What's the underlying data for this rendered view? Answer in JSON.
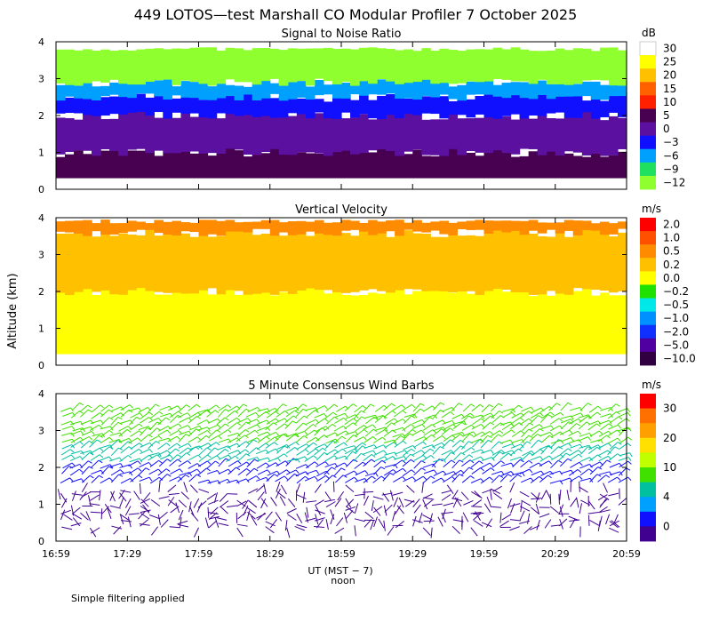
{
  "title": "449 LOTOS—test Marshall CO Modular Profiler  7 October 2025",
  "footnote": "Simple filtering applied",
  "xaxis": {
    "label": "UT  (MST − 7)",
    "sublabel": "noon",
    "ticks": [
      "16:59",
      "17:29",
      "17:59",
      "18:29",
      "18:59",
      "19:29",
      "19:59",
      "20:29",
      "20:59"
    ]
  },
  "yaxis_label": "Altitude (km)",
  "chart_data": [
    {
      "type": "heatmap",
      "title": "Signal to Noise Ratio",
      "unit": "dB",
      "ylim": [
        0,
        4
      ],
      "yticks": [
        "0",
        "1",
        "2",
        "3",
        "4"
      ],
      "colorbar": {
        "labels": [
          "30",
          "25",
          "20",
          "15",
          "10",
          "5",
          "0",
          "−3",
          "−6",
          "−9",
          "−12"
        ],
        "colors": [
          "#ffffff",
          "#ffff00",
          "#ffc000",
          "#ff6000",
          "#ff2000",
          "#480050",
          "#5c10a0",
          "#1010ff",
          "#00a0ff",
          "#20e060",
          "#90ff30"
        ]
      },
      "layers": [
        {
          "alt_range": [
            0.3,
            1.0
          ],
          "color": "#480050"
        },
        {
          "alt_range": [
            1.0,
            2.0
          ],
          "color": "#5c10a0"
        },
        {
          "alt_range": [
            2.0,
            2.5
          ],
          "color": "#1010ff"
        },
        {
          "alt_range": [
            2.5,
            2.9
          ],
          "color": "#00a0ff"
        },
        {
          "alt_range": [
            2.9,
            3.8
          ],
          "color": "#90ff30"
        }
      ]
    },
    {
      "type": "heatmap",
      "title": "Vertical Velocity",
      "unit": "m/s",
      "ylim": [
        0,
        4
      ],
      "yticks": [
        "0",
        "1",
        "2",
        "3",
        "4"
      ],
      "colorbar": {
        "labels": [
          "2.0",
          "1.0",
          "0.5",
          "0.2",
          "0.0",
          "−0.2",
          "−0.5",
          "−1.0",
          "−2.0",
          "−5.0",
          "−10.0"
        ],
        "colors": [
          "#ff0000",
          "#ff5000",
          "#ff8c00",
          "#ffc000",
          "#ffff00",
          "#20e000",
          "#00e8e8",
          "#0090ff",
          "#1030ff",
          "#5000a0",
          "#300040"
        ]
      },
      "layers": [
        {
          "alt_range": [
            0.3,
            2.0
          ],
          "color": "#ffff00"
        },
        {
          "alt_range": [
            2.0,
            3.6
          ],
          "color": "#ffc000"
        },
        {
          "alt_range": [
            3.6,
            3.9
          ],
          "color": "#ff8c00"
        }
      ]
    },
    {
      "type": "scatter",
      "title": "5 Minute Consensus Wind Barbs",
      "unit": "m/s",
      "ylim": [
        0,
        4
      ],
      "yticks": [
        "0",
        "1",
        "2",
        "3",
        "4"
      ],
      "colorbar": {
        "labels": [
          "30",
          "20",
          "10",
          "4",
          "0"
        ],
        "colors": [
          "#ff0000",
          "#ff7000",
          "#ffa000",
          "#ffe000",
          "#c0ff00",
          "#40e000",
          "#00c0a0",
          "#00a0ff",
          "#1010ff",
          "#400090"
        ]
      },
      "barb_layers": [
        {
          "alt_range": [
            0.3,
            1.4
          ],
          "speed_ms": 2,
          "color": "#400090"
        },
        {
          "alt_range": [
            1.5,
            2.1
          ],
          "speed_ms": 5,
          "color": "#1010ff"
        },
        {
          "alt_range": [
            2.1,
            2.6
          ],
          "speed_ms": 8,
          "color": "#00c0a0"
        },
        {
          "alt_range": [
            2.6,
            3.6
          ],
          "speed_ms": 12,
          "color": "#40e000"
        }
      ]
    }
  ]
}
